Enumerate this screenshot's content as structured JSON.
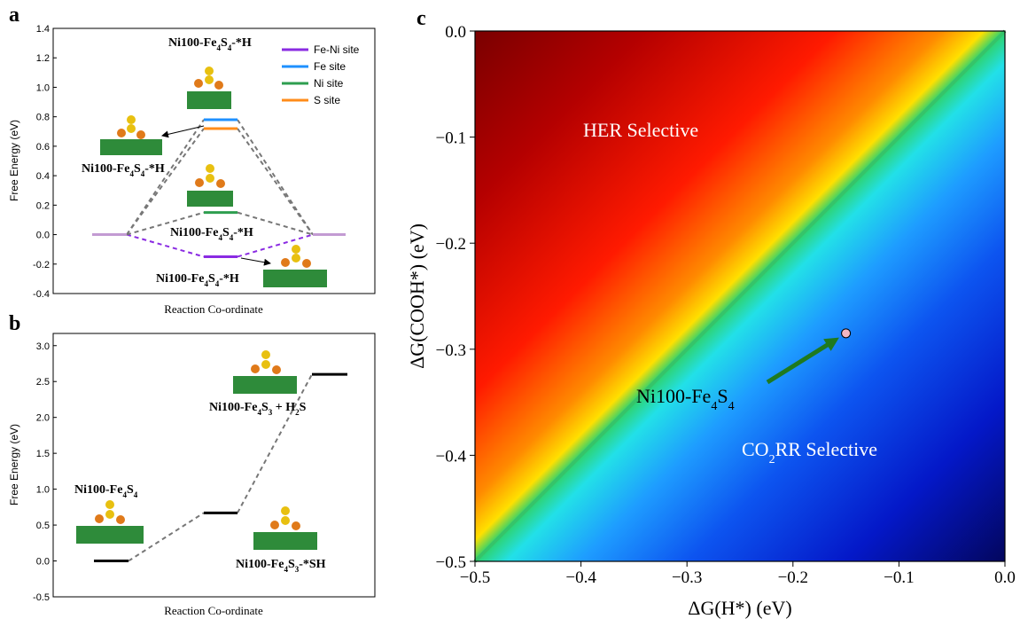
{
  "chart_data": [
    {
      "panel_label": "a",
      "type": "line",
      "xlabel": "Reaction Co-ordinate",
      "ylabel": "Free Energy (eV)",
      "ylim": [
        -0.4,
        1.4
      ],
      "yticks": [
        "-0.4",
        "-0.2",
        "0.0",
        "0.2",
        "0.4",
        "0.6",
        "0.8",
        "1.0",
        "1.2",
        "1.4"
      ],
      "steps": [
        0,
        1,
        2
      ],
      "legend_position": "top-right",
      "series": [
        {
          "name": "Fe-Ni site",
          "color": "#8a2be2",
          "values": [
            0.0,
            -0.15,
            0.0
          ]
        },
        {
          "name": "Fe site",
          "color": "#1e90ff",
          "values": [
            0.0,
            0.78,
            0.0
          ]
        },
        {
          "name": "Ni site",
          "color": "#2e9e4f",
          "values": [
            0.0,
            0.15,
            0.0
          ]
        },
        {
          "name": "S site",
          "color": "#ff8c1a",
          "values": [
            0.0,
            0.72,
            0.0
          ]
        }
      ],
      "annotations": [
        {
          "base": "Ni100-Fe",
          "sub1": "4",
          "mid": "S",
          "sub2": "4",
          "tail": "-*H"
        },
        {
          "base": "Ni100-Fe",
          "sub1": "4",
          "mid": "S",
          "sub2": "4",
          "tail": "-*H"
        },
        {
          "base": "Ni100-Fe",
          "sub1": "4",
          "mid": "S",
          "sub2": "4",
          "tail": "-*H"
        },
        {
          "base": "Ni100-Fe",
          "sub1": "4",
          "mid": "S",
          "sub2": "4",
          "tail": "-*H"
        }
      ]
    },
    {
      "panel_label": "b",
      "type": "line",
      "xlabel": "Reaction Co-ordinate",
      "ylabel": "Free Energy (eV)",
      "ylim": [
        -0.5,
        3.0
      ],
      "yticks": [
        "-0.5",
        "0.0",
        "0.5",
        "1.0",
        "1.5",
        "2.0",
        "2.5",
        "3.0"
      ],
      "steps": [
        0,
        1,
        2
      ],
      "values": [
        0.0,
        0.67,
        2.6
      ],
      "annotations": [
        {
          "base": "Ni100-Fe",
          "sub1": "4",
          "mid": "S",
          "sub2": "4",
          "tail": ""
        },
        {
          "base": "Ni100-Fe",
          "sub1": "4",
          "mid": "S",
          "sub2": "3",
          "tail": "-*SH"
        },
        {
          "base": "Ni100-Fe",
          "sub1": "4",
          "mid": "S",
          "sub2": "3",
          "tail": " + H",
          "sub3": "2",
          "tail2": "S"
        }
      ]
    },
    {
      "panel_label": "c",
      "type": "heatmap",
      "xlabel": "ΔG(H*) (eV)",
      "ylabel": "ΔG(COOH*) (eV)",
      "xlim": [
        -0.5,
        0.0
      ],
      "ylim": [
        -0.5,
        0.0
      ],
      "xticks": [
        "−0.5",
        "−0.4",
        "−0.3",
        "−0.2",
        "−0.1",
        "0.0"
      ],
      "yticks": [
        "−0.5",
        "−0.4",
        "−0.3",
        "−0.2",
        "−0.1",
        "0.0"
      ],
      "region_labels": [
        "HER Selective",
        "CO2RR Selective"
      ],
      "point": {
        "x": -0.15,
        "y": -0.285,
        "label_base": "Ni100-Fe",
        "label_sub1": "4",
        "label_mid": "S",
        "label_sub2": "4"
      },
      "colormap": "jet"
    }
  ]
}
